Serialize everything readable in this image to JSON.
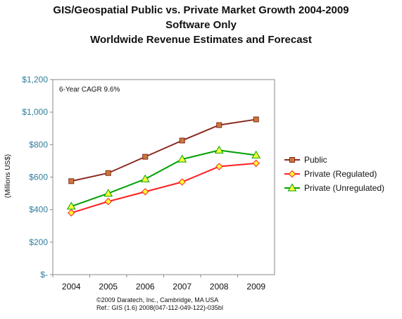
{
  "chart_data": {
    "type": "line",
    "title": "GIS/Geospatial Public vs. Private Market Growth 2004-2009",
    "subtitle": "Software Only",
    "subtitle2": "Worldwide Revenue Estimates and Forecast",
    "ylabel": "(Millions US$)",
    "xlabel": "",
    "categories": [
      "2004",
      "2005",
      "2006",
      "2007",
      "2008",
      "2009"
    ],
    "y_ticks": [
      "$-",
      "$200",
      "$400",
      "$600",
      "$800",
      "$1,000",
      "$1,200"
    ],
    "ylim": [
      0,
      1200
    ],
    "grid": false,
    "legend_position": "right",
    "annotation": "6-Year CAGR 9.6%",
    "series": [
      {
        "name": "Public",
        "values": [
          575,
          625,
          725,
          825,
          920,
          955
        ],
        "color": "#8b2a1e",
        "marker": "square",
        "marker_fill": "#c87a3a"
      },
      {
        "name": "Private (Regulated)",
        "values": [
          380,
          450,
          510,
          570,
          665,
          685
        ],
        "color": "#ff2020",
        "marker": "diamond",
        "marker_fill": "#ffff33"
      },
      {
        "name": "Private (Unregulated)",
        "values": [
          420,
          500,
          588,
          710,
          765,
          735
        ],
        "color": "#00a000",
        "marker": "triangle",
        "marker_fill": "#ffff33"
      }
    ]
  },
  "footer": {
    "line1": "©2009 Daratech, Inc., Cambridge, MA USA",
    "line2": "Ref.: GIS (1.6) 2008(047-112-049-122)-035bl"
  }
}
